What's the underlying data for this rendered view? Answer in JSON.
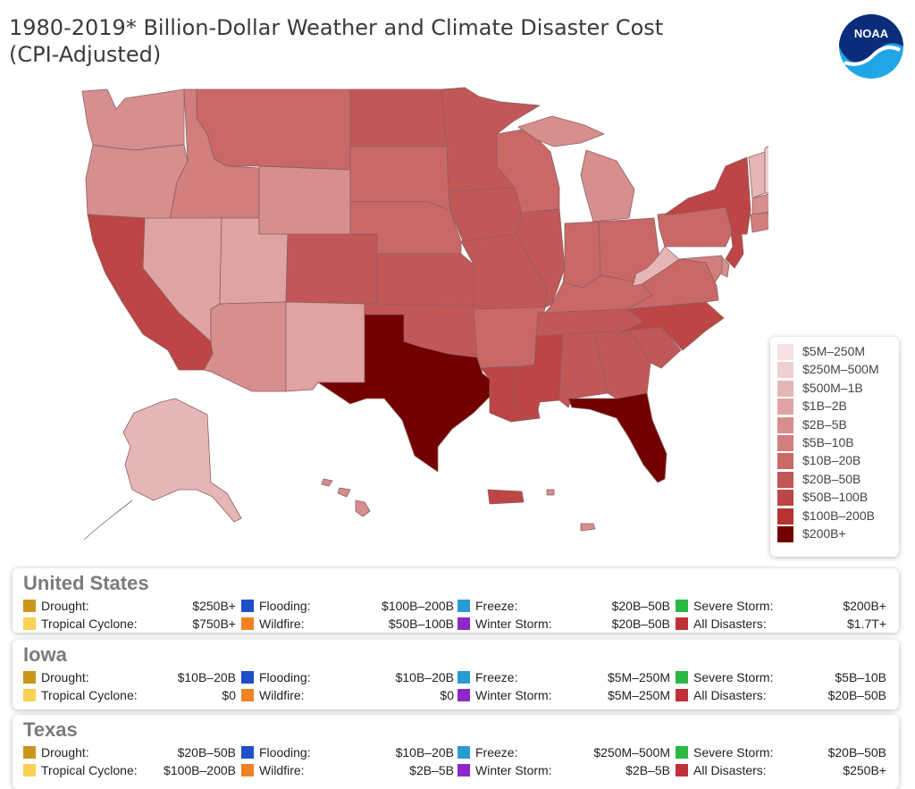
{
  "title_line1": "1980-2019* Billion-Dollar Weather and Climate Disaster Cost",
  "title_line2": "(CPI-Adjusted)",
  "logo_text": "NOAA",
  "legend": {
    "items": [
      {
        "label": "$5M–250M",
        "color": "#f6e2e2"
      },
      {
        "label": "$250M–500M",
        "color": "#efd0d0"
      },
      {
        "label": "$500M–1B",
        "color": "#e6b6b6"
      },
      {
        "label": "$1B–2B",
        "color": "#dfa3a3"
      },
      {
        "label": "$2B–5B",
        "color": "#d78e8e"
      },
      {
        "label": "$5B–10B",
        "color": "#d27e7e"
      },
      {
        "label": "$10B–20B",
        "color": "#ca6868"
      },
      {
        "label": "$20B–50B",
        "color": "#c25757"
      },
      {
        "label": "$50B–100B",
        "color": "#bd4545"
      },
      {
        "label": "$100B–200B",
        "color": "#b73232"
      },
      {
        "label": "$200B+",
        "color": "#730000"
      }
    ]
  },
  "panel_labels": {
    "drought": "Drought:",
    "flooding": "Flooding:",
    "freeze": "Freeze:",
    "severe_storm": "Severe Storm:",
    "tropical_cyclone": "Tropical Cyclone:",
    "wildfire": "Wildfire:",
    "winter_storm": "Winter Storm:",
    "all_disasters": "All Disasters:"
  },
  "category_colors": {
    "drought": "#c9951c",
    "flooding": "#1e4fc8",
    "freeze": "#2a9bd1",
    "severe_storm": "#2bb845",
    "tropical_cyclone": "#fbd054",
    "wildfire": "#ef8224",
    "winter_storm": "#8e28c4",
    "all_disasters": "#c1303a"
  },
  "panels": {
    "us": {
      "title": "United States",
      "drought": "$250B+",
      "flooding": "$100B–200B",
      "freeze": "$20B–50B",
      "severe_storm": "$200B+",
      "tropical_cyclone": "$750B+",
      "wildfire": "$50B–100B",
      "winter_storm": "$20B–50B",
      "all_disasters": "$1.7T+"
    },
    "iowa": {
      "title": "Iowa",
      "drought": "$10B–20B",
      "flooding": "$10B–20B",
      "freeze": "$5M–250M",
      "severe_storm": "$5B–10B",
      "tropical_cyclone": "$0",
      "wildfire": "$0",
      "winter_storm": "$5M–250M",
      "all_disasters": "$20B–50B"
    },
    "texas": {
      "title": "Texas",
      "drought": "$20B–50B",
      "flooding": "$10B–20B",
      "freeze": "$250M–500M",
      "severe_storm": "$20B–50B",
      "tropical_cyclone": "$100B–200B",
      "wildfire": "$2B–5B",
      "winter_storm": "$2B–5B",
      "all_disasters": "$250B+"
    }
  }
}
